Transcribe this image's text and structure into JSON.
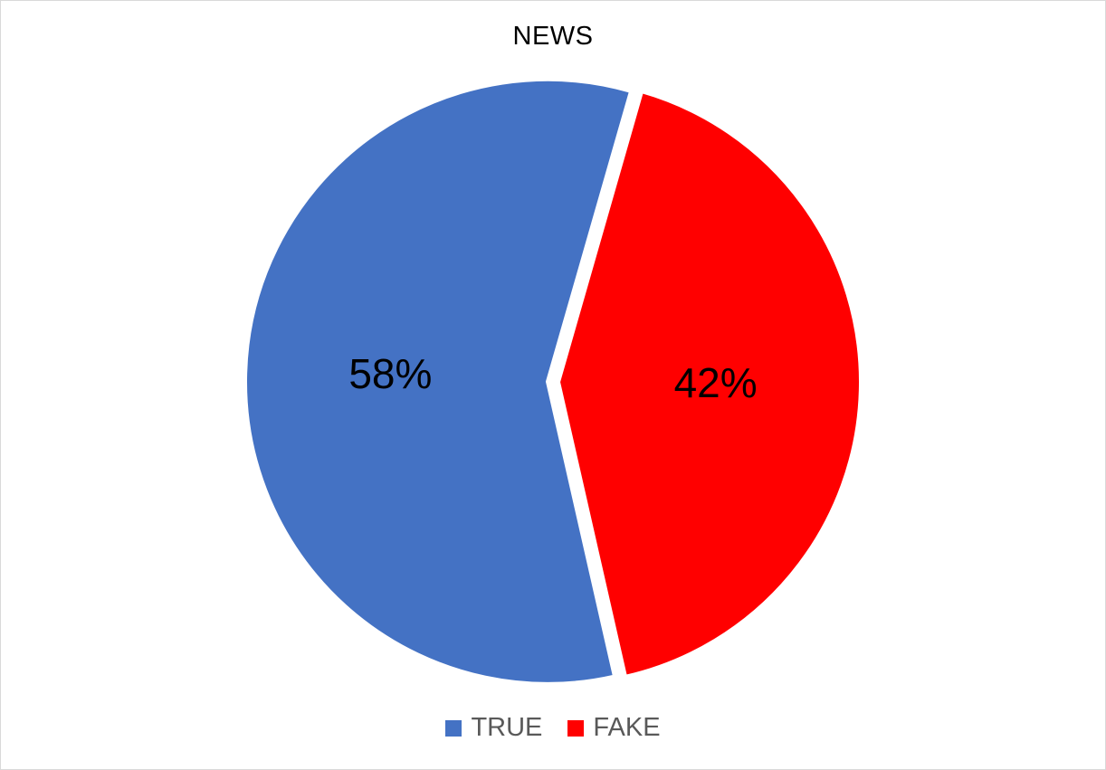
{
  "chart_data": {
    "type": "pie",
    "title": "NEWS",
    "categories": [
      "TRUE",
      "FAKE"
    ],
    "values": [
      58,
      42
    ],
    "labels": [
      "58%",
      "42%"
    ],
    "colors": [
      "#4472c4",
      "#ff0000"
    ],
    "exploded": true,
    "legend": "bottom"
  }
}
